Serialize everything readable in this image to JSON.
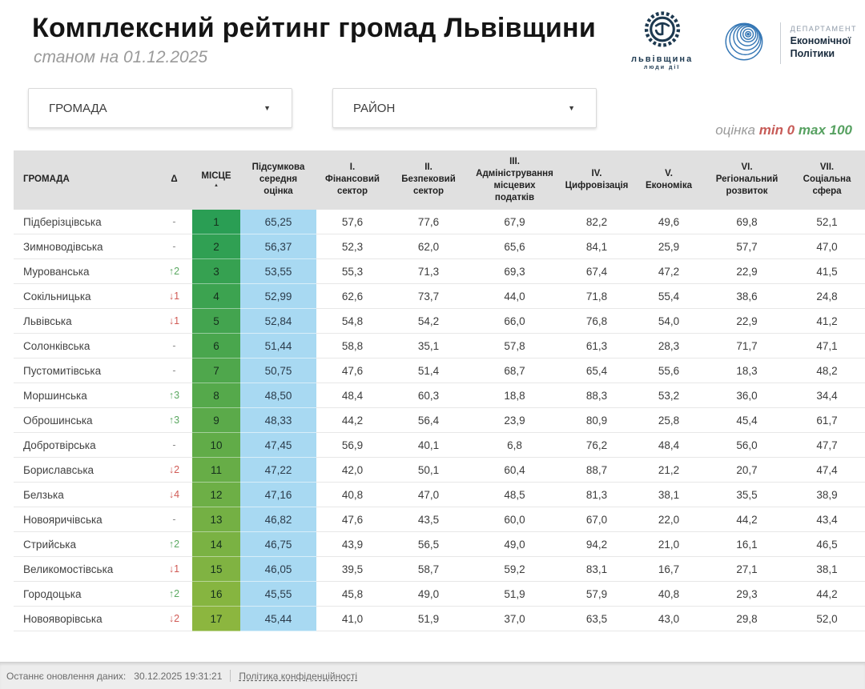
{
  "header": {
    "title": "Комплексний рейтинг громад Львівщини",
    "subtitle": "станом на 01.12.2025",
    "logos": {
      "region": {
        "name": "львівщина",
        "tagline": "люди дії"
      },
      "department": {
        "line1": "ДЕПАРТАМЕНТ",
        "line2": "Економічної",
        "line3": "Політики"
      }
    }
  },
  "filters": {
    "hromada": {
      "label": "ГРОМАДА"
    },
    "raion": {
      "label": "РАЙОН"
    }
  },
  "scale_note": {
    "label": "оцінка",
    "min": "min 0",
    "max": "max 100"
  },
  "table": {
    "columns": [
      {
        "id": "hromada",
        "label": "ГРОМАДА"
      },
      {
        "id": "delta",
        "label": "Δ"
      },
      {
        "id": "place",
        "label": "МІСЦЕ",
        "sort": "asc"
      },
      {
        "id": "total",
        "label": "Підсумкова\nсередня\nоцінка"
      },
      {
        "id": "fin",
        "label": "I.\nФінансовий\nсектор"
      },
      {
        "id": "bezpeka",
        "label": "II.\nБезпековий\nсектор"
      },
      {
        "id": "podatky",
        "label": "III.\nАдміністрування\nмісцевих\nподатків"
      },
      {
        "id": "cyfra",
        "label": "IV.\nЦифровізація"
      },
      {
        "id": "ekonomika",
        "label": "V.\nЕкономіка"
      },
      {
        "id": "rozvytok",
        "label": "VI.\nРегіональний\nрозвиток"
      },
      {
        "id": "social",
        "label": "VII.\nСоціальна\nсфера"
      }
    ],
    "rows": [
      {
        "name": "Підберізцівська",
        "delta": {
          "dir": "none",
          "value": ""
        },
        "place": "1",
        "total": "65,25",
        "scores": [
          "57,6",
          "77,6",
          "67,9",
          "82,2",
          "49,6",
          "69,8",
          "52,1"
        ]
      },
      {
        "name": "Зимноводівська",
        "delta": {
          "dir": "none",
          "value": ""
        },
        "place": "2",
        "total": "56,37",
        "scores": [
          "52,3",
          "62,0",
          "65,6",
          "84,1",
          "25,9",
          "57,7",
          "47,0"
        ]
      },
      {
        "name": "Мурованська",
        "delta": {
          "dir": "up",
          "value": "2"
        },
        "place": "3",
        "total": "53,55",
        "scores": [
          "55,3",
          "71,3",
          "69,3",
          "67,4",
          "47,2",
          "22,9",
          "41,5"
        ]
      },
      {
        "name": "Сокільницька",
        "delta": {
          "dir": "down",
          "value": "1"
        },
        "place": "4",
        "total": "52,99",
        "scores": [
          "62,6",
          "73,7",
          "44,0",
          "71,8",
          "55,4",
          "38,6",
          "24,8"
        ]
      },
      {
        "name": "Львівська",
        "delta": {
          "dir": "down",
          "value": "1"
        },
        "place": "5",
        "total": "52,84",
        "scores": [
          "54,8",
          "54,2",
          "66,0",
          "76,8",
          "54,0",
          "22,9",
          "41,2"
        ]
      },
      {
        "name": "Солонківська",
        "delta": {
          "dir": "none",
          "value": ""
        },
        "place": "6",
        "total": "51,44",
        "scores": [
          "58,8",
          "35,1",
          "57,8",
          "61,3",
          "28,3",
          "71,7",
          "47,1"
        ]
      },
      {
        "name": "Пустомитівська",
        "delta": {
          "dir": "none",
          "value": ""
        },
        "place": "7",
        "total": "50,75",
        "scores": [
          "47,6",
          "51,4",
          "68,7",
          "65,4",
          "55,6",
          "18,3",
          "48,2"
        ]
      },
      {
        "name": "Моршинська",
        "delta": {
          "dir": "up",
          "value": "3"
        },
        "place": "8",
        "total": "48,50",
        "scores": [
          "48,4",
          "60,3",
          "18,8",
          "88,3",
          "53,2",
          "36,0",
          "34,4"
        ]
      },
      {
        "name": "Оброшинська",
        "delta": {
          "dir": "up",
          "value": "3"
        },
        "place": "9",
        "total": "48,33",
        "scores": [
          "44,2",
          "56,4",
          "23,9",
          "80,9",
          "25,8",
          "45,4",
          "61,7"
        ]
      },
      {
        "name": "Добротвірська",
        "delta": {
          "dir": "none",
          "value": ""
        },
        "place": "10",
        "total": "47,45",
        "scores": [
          "56,9",
          "40,1",
          "6,8",
          "76,2",
          "48,4",
          "56,0",
          "47,7"
        ]
      },
      {
        "name": "Бориславська",
        "delta": {
          "dir": "down",
          "value": "2"
        },
        "place": "11",
        "total": "47,22",
        "scores": [
          "42,0",
          "50,1",
          "60,4",
          "88,7",
          "21,2",
          "20,7",
          "47,4"
        ]
      },
      {
        "name": "Белзька",
        "delta": {
          "dir": "down",
          "value": "4"
        },
        "place": "12",
        "total": "47,16",
        "scores": [
          "40,8",
          "47,0",
          "48,5",
          "81,3",
          "38,1",
          "35,5",
          "38,9"
        ]
      },
      {
        "name": "Новояричівська",
        "delta": {
          "dir": "none",
          "value": ""
        },
        "place": "13",
        "total": "46,82",
        "scores": [
          "47,6",
          "43,5",
          "60,0",
          "67,0",
          "22,0",
          "44,2",
          "43,4"
        ]
      },
      {
        "name": "Стрийська",
        "delta": {
          "dir": "up",
          "value": "2"
        },
        "place": "14",
        "total": "46,75",
        "scores": [
          "43,9",
          "56,5",
          "49,0",
          "94,2",
          "21,0",
          "16,1",
          "46,5"
        ]
      },
      {
        "name": "Великомостівська",
        "delta": {
          "dir": "down",
          "value": "1"
        },
        "place": "15",
        "total": "46,05",
        "scores": [
          "39,5",
          "58,7",
          "59,2",
          "83,1",
          "16,7",
          "27,1",
          "38,1"
        ]
      },
      {
        "name": "Городоцька",
        "delta": {
          "dir": "up",
          "value": "2"
        },
        "place": "16",
        "total": "45,55",
        "scores": [
          "45,8",
          "49,0",
          "51,9",
          "57,9",
          "40,8",
          "29,3",
          "44,2"
        ]
      },
      {
        "name": "Новояворівська",
        "delta": {
          "dir": "down",
          "value": "2"
        },
        "place": "17",
        "total": "45,44",
        "scores": [
          "41,0",
          "51,9",
          "37,0",
          "63,5",
          "43,0",
          "29,8",
          "52,0"
        ]
      }
    ]
  },
  "footer": {
    "last_update_label": "Останнє оновлення даних:",
    "last_update_value": "30.12.2025 19:31:21",
    "privacy_link": "Політика конфіденційності"
  },
  "theme": {
    "place_color_start": "#2a9e54",
    "place_color_end": "#8cb63f",
    "score_bg": "#a8d9f2",
    "delta_up_color": "#5aa860",
    "delta_down_color": "#d05a55",
    "delta_none_color": "#8a8a8a",
    "min_color": "#c75b57",
    "max_color": "#57a161",
    "header_bg": "#e0e0e0",
    "logo_navy": "#1d3950",
    "logo_blue": "#3577b5"
  }
}
